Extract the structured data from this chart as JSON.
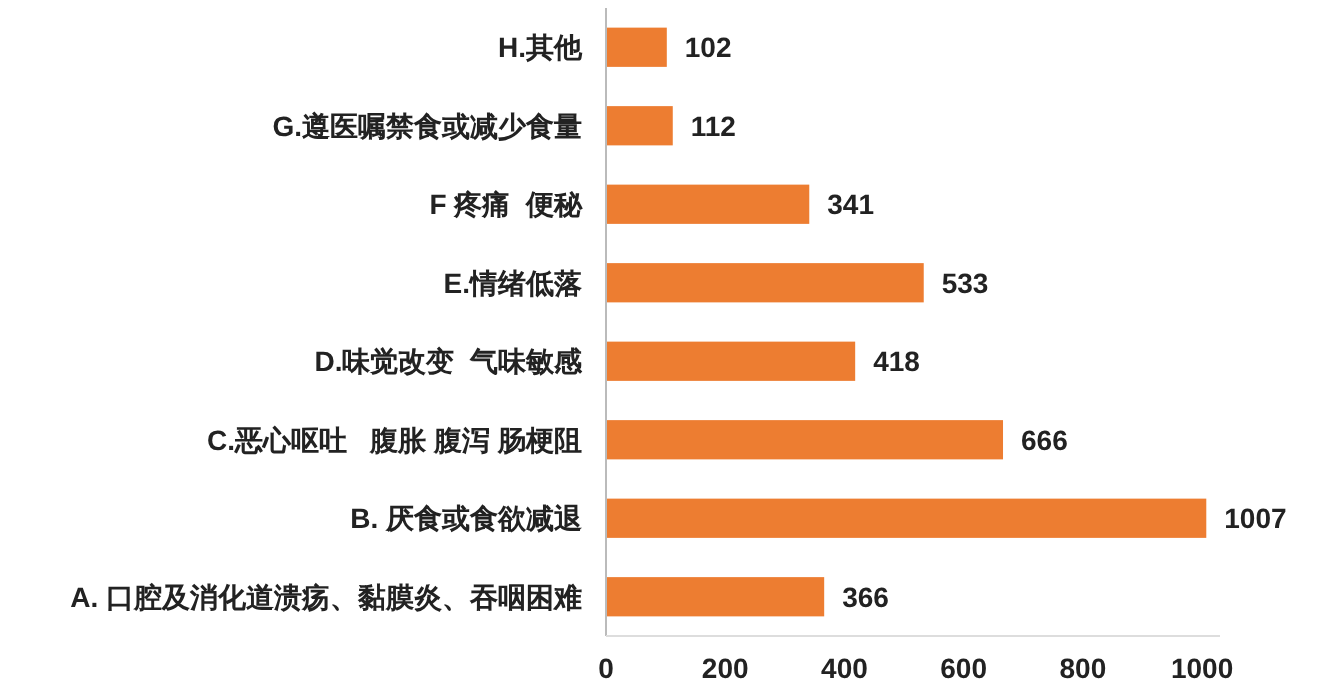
{
  "chart_data": {
    "type": "bar",
    "orientation": "horizontal",
    "categories": [
      "H.其他",
      "G.遵医嘱禁食或减少食量",
      "F 疼痛  便秘",
      "E.情绪低落",
      "D.味觉改变  气味敏感",
      "C.恶心呕吐   腹胀 腹泻 肠梗阻",
      "B. 厌食或食欲减退",
      "A. 口腔及消化道溃疡、黏膜炎、吞咽困难"
    ],
    "values": [
      102,
      112,
      341,
      533,
      418,
      666,
      1007,
      366
    ],
    "color": "#ed7d31",
    "xlim": [
      0,
      1030
    ],
    "xticks": [
      0,
      200,
      400,
      600,
      800,
      1000
    ],
    "data_labels": true
  }
}
